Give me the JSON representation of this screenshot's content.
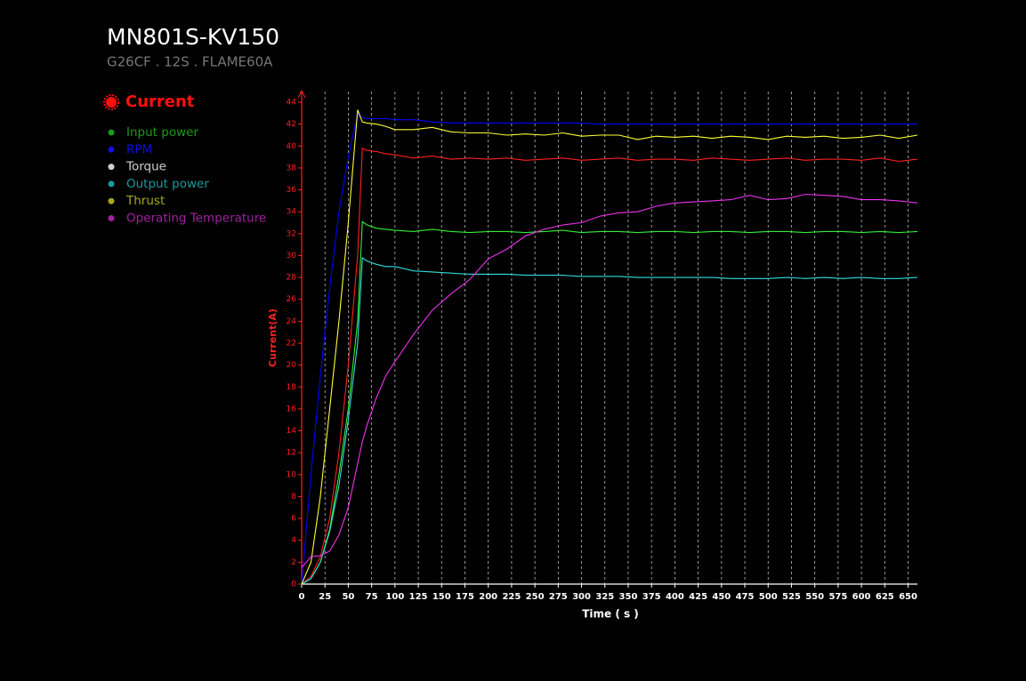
{
  "chart_data": {
    "type": "line",
    "title": "MN801S-KV150",
    "subtitle": "G26CF . 12S . FLAME60A",
    "x_label": "Time ( s )",
    "y_label": "Current(A)",
    "x": [
      0,
      10,
      20,
      30,
      40,
      50,
      60,
      65,
      70,
      80,
      90,
      100,
      120,
      140,
      160,
      180,
      200,
      220,
      240,
      260,
      280,
      300,
      320,
      340,
      360,
      380,
      400,
      420,
      440,
      460,
      480,
      500,
      520,
      540,
      560,
      580,
      600,
      620,
      640,
      660
    ],
    "series": [
      {
        "name": "Current",
        "color": "#ff2020",
        "legend_color": "#ff1010",
        "values": [
          0,
          0.7,
          2.5,
          6,
          12,
          20,
          30,
          39.8,
          39.6,
          39.5,
          39.3,
          39.2,
          38.9,
          39.1,
          38.8,
          38.9,
          38.8,
          38.9,
          38.7,
          38.8,
          38.9,
          38.7,
          38.8,
          38.9,
          38.7,
          38.8,
          38.8,
          38.7,
          38.9,
          38.8,
          38.7,
          38.8,
          38.9,
          38.7,
          38.8,
          38.8,
          38.7,
          38.9,
          38.6,
          38.8
        ]
      },
      {
        "name": "Input power",
        "color": "#33ee33",
        "legend_color": "#1a9a1a",
        "values": [
          0,
          0.5,
          2,
          5,
          10,
          16,
          24,
          33.1,
          32.8,
          32.5,
          32.4,
          32.3,
          32.2,
          32.4,
          32.2,
          32.1,
          32.2,
          32.2,
          32.1,
          32.2,
          32.3,
          32.1,
          32.2,
          32.2,
          32.1,
          32.2,
          32.2,
          32.1,
          32.2,
          32.2,
          32.1,
          32.2,
          32.2,
          32.1,
          32.2,
          32.2,
          32.1,
          32.2,
          32.1,
          32.2
        ]
      },
      {
        "name": "RPM",
        "color": "#0000ff",
        "legend_color": "#1010e0",
        "values": [
          0,
          10,
          19,
          27,
          34,
          39,
          43,
          42.6,
          42.5,
          42.5,
          42.5,
          42.4,
          42.4,
          42.2,
          42.1,
          42.1,
          42.1,
          42.1,
          42.1,
          42.1,
          42.1,
          42.1,
          42,
          42,
          42,
          42,
          42,
          42,
          42,
          42,
          42,
          42,
          42,
          42,
          42,
          42,
          42,
          42,
          42,
          42
        ]
      },
      {
        "name": "Torque",
        "color": "#cccccc",
        "legend_color": "#d0d0d0",
        "values": [
          null,
          null,
          null,
          null,
          null,
          null,
          null,
          null,
          null,
          null,
          null,
          null,
          null,
          null,
          null,
          null,
          null,
          null,
          null,
          null,
          null,
          null,
          null,
          null,
          null,
          null,
          null,
          null,
          null,
          null,
          null,
          null,
          null,
          null,
          null,
          null,
          null,
          null,
          null,
          null
        ]
      },
      {
        "name": "Output power",
        "color": "#33dddd",
        "legend_color": "#1a9a9a",
        "values": [
          0,
          0.5,
          2,
          4.8,
          9,
          15,
          22,
          29.8,
          29.5,
          29.2,
          29,
          29,
          28.6,
          28.5,
          28.4,
          28.3,
          28.3,
          28.3,
          28.2,
          28.2,
          28.2,
          28.1,
          28.1,
          28.1,
          28,
          28,
          28,
          28,
          28,
          27.9,
          27.9,
          27.9,
          28,
          27.9,
          28,
          27.9,
          28,
          27.9,
          27.9,
          28
        ]
      },
      {
        "name": "Thrust",
        "color": "#ffff33",
        "legend_color": "#a8a820",
        "values": [
          0,
          2,
          8,
          16,
          24,
          33,
          43.3,
          42.2,
          42.1,
          42,
          41.8,
          41.5,
          41.5,
          41.7,
          41.3,
          41.2,
          41.2,
          41,
          41.1,
          41,
          41.2,
          40.9,
          41,
          41,
          40.6,
          40.9,
          40.8,
          40.9,
          40.7,
          40.9,
          40.8,
          40.6,
          40.9,
          40.8,
          40.9,
          40.7,
          40.8,
          41,
          40.7,
          41
        ]
      },
      {
        "name": "Operating Temperature",
        "color": "#ee33ee",
        "legend_color": "#a020a0",
        "values": [
          1.5,
          2.5,
          2.6,
          3,
          4.5,
          7,
          11,
          13,
          14.5,
          17,
          19,
          20.3,
          22.8,
          25,
          26.5,
          27.8,
          29.7,
          30.6,
          31.8,
          32.4,
          32.8,
          33,
          33.6,
          33.9,
          34,
          34.5,
          34.8,
          34.9,
          35,
          35.1,
          35.5,
          35.1,
          35.2,
          35.6,
          35.5,
          35.4,
          35.1,
          35.1,
          35,
          34.8
        ]
      }
    ],
    "xlim": [
      0,
      660
    ],
    "ylim": [
      0,
      44
    ],
    "xticks": [
      0,
      25,
      50,
      75,
      100,
      125,
      150,
      175,
      200,
      225,
      250,
      275,
      300,
      325,
      350,
      375,
      400,
      425,
      450,
      475,
      500,
      525,
      550,
      575,
      600,
      625,
      650
    ],
    "yticks": [
      0,
      2,
      4,
      6,
      8,
      10,
      12,
      14,
      16,
      18,
      20,
      22,
      24,
      26,
      28,
      30,
      32,
      34,
      36,
      38,
      40,
      42,
      44
    ],
    "grid": true
  }
}
